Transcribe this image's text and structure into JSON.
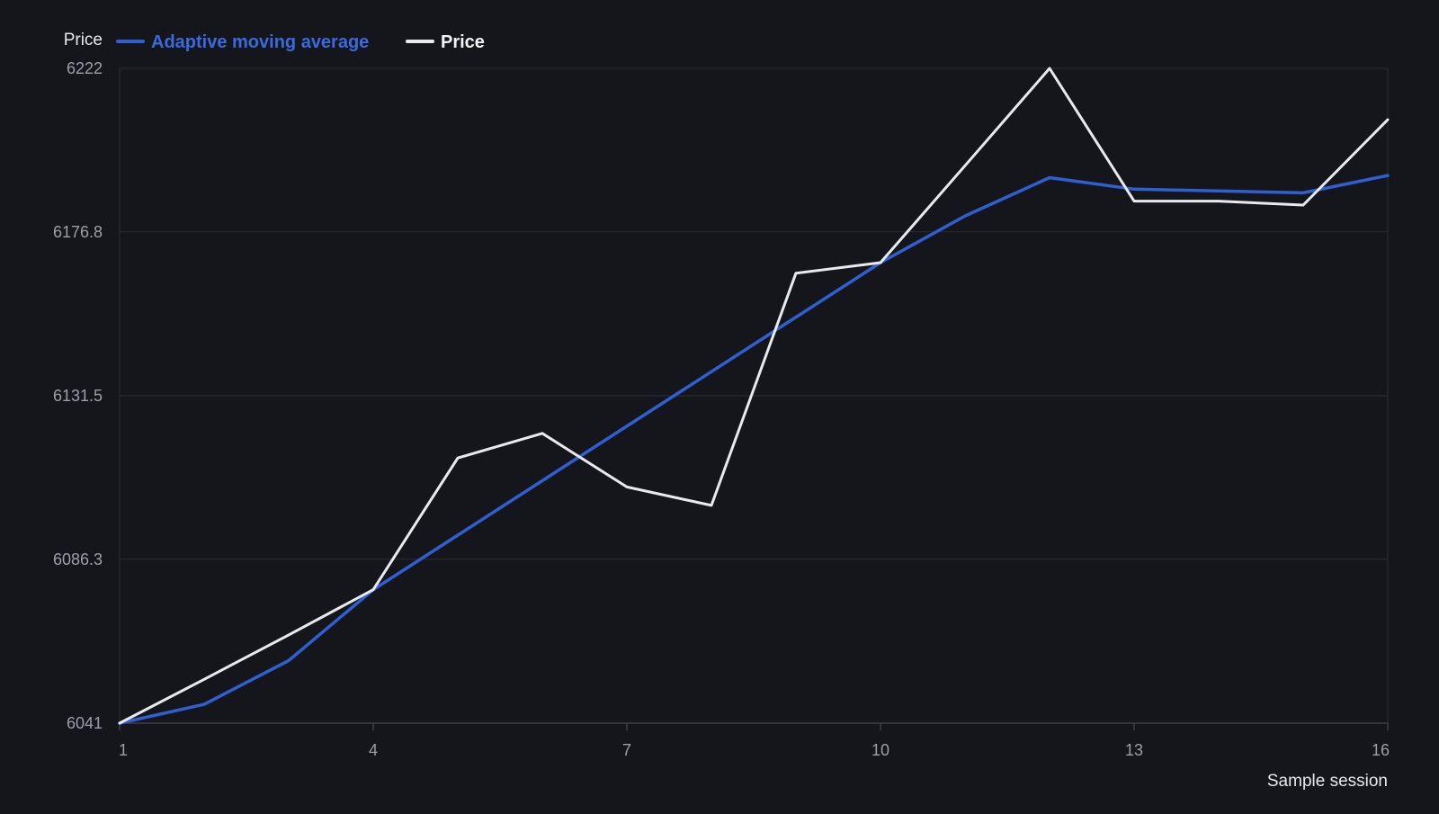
{
  "chart_data": {
    "type": "line",
    "title": "",
    "xlabel": "Sample session",
    "ylabel": "Price",
    "x": [
      1,
      2,
      3,
      4,
      5,
      6,
      7,
      8,
      9,
      10,
      11,
      12,
      13,
      14,
      15,
      16
    ],
    "x_ticks": [
      1,
      4,
      7,
      10,
      13,
      16
    ],
    "y_ticks": [
      "6041",
      "6086.3",
      "6131.5",
      "6176.8",
      "6222"
    ],
    "xlim": [
      1,
      16
    ],
    "ylim": [
      6041,
      6222
    ],
    "grid": true,
    "legend_position": "top-left",
    "series": [
      {
        "name": "Adaptive moving average",
        "color": "#2f5fd0",
        "values": [
          6041,
          6046.2,
          6058.3,
          6077.9,
          null,
          null,
          null,
          null,
          null,
          6168.3,
          6181.2,
          6191.8,
          6188.6,
          6188.1,
          6187.6,
          6192.4
        ]
      },
      {
        "name": "Price",
        "color": "#e8eaee",
        "values": [
          6041,
          6053.1,
          6065.4,
          6077.9,
          6114.3,
          6121.1,
          6106.3,
          6101.2,
          6165.4,
          6168.3,
          6195.1,
          6222,
          6185.3,
          6185.3,
          6184.2,
          6207.8
        ]
      }
    ]
  }
}
